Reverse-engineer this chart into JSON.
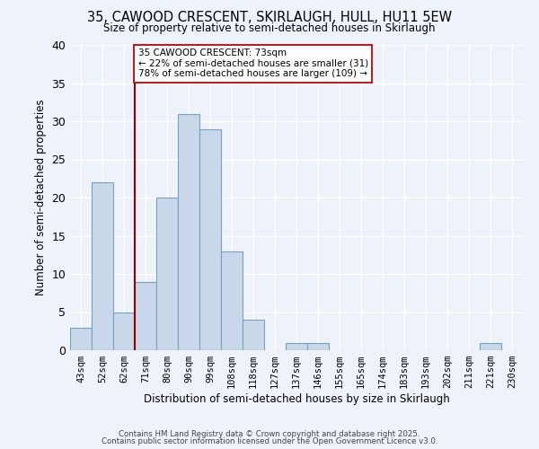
{
  "title_line1": "35, CAWOOD CRESCENT, SKIRLAUGH, HULL, HU11 5EW",
  "title_line2": "Size of property relative to semi-detached houses in Skirlaugh",
  "xlabel": "Distribution of semi-detached houses by size in Skirlaugh",
  "ylabel": "Number of semi-detached properties",
  "categories": [
    "43sqm",
    "52sqm",
    "62sqm",
    "71sqm",
    "80sqm",
    "90sqm",
    "99sqm",
    "108sqm",
    "118sqm",
    "127sqm",
    "137sqm",
    "146sqm",
    "155sqm",
    "165sqm",
    "174sqm",
    "183sqm",
    "193sqm",
    "202sqm",
    "211sqm",
    "221sqm",
    "230sqm"
  ],
  "values": [
    3,
    22,
    5,
    9,
    20,
    31,
    29,
    13,
    4,
    0,
    1,
    1,
    0,
    0,
    0,
    0,
    0,
    0,
    0,
    1,
    0
  ],
  "bar_color": "#c8d8ea",
  "bar_edge_color": "#7aa0c0",
  "bar_width": 1.0,
  "red_line_color": "#990000",
  "annotation_box_color": "#ffffff",
  "annotation_box_edge": "#cc0000",
  "property_label": "35 CAWOOD CRESCENT: 73sqm",
  "smaller_pct": 22,
  "smaller_count": 31,
  "larger_pct": 78,
  "larger_count": 109,
  "ylim": [
    0,
    40
  ],
  "yticks": [
    0,
    5,
    10,
    15,
    20,
    25,
    30,
    35,
    40
  ],
  "bg_color": "#eef2fa",
  "grid_color": "#ffffff",
  "footer_line1": "Contains HM Land Registry data © Crown copyright and database right 2025.",
  "footer_line2": "Contains public sector information licensed under the Open Government Licence v3.0."
}
